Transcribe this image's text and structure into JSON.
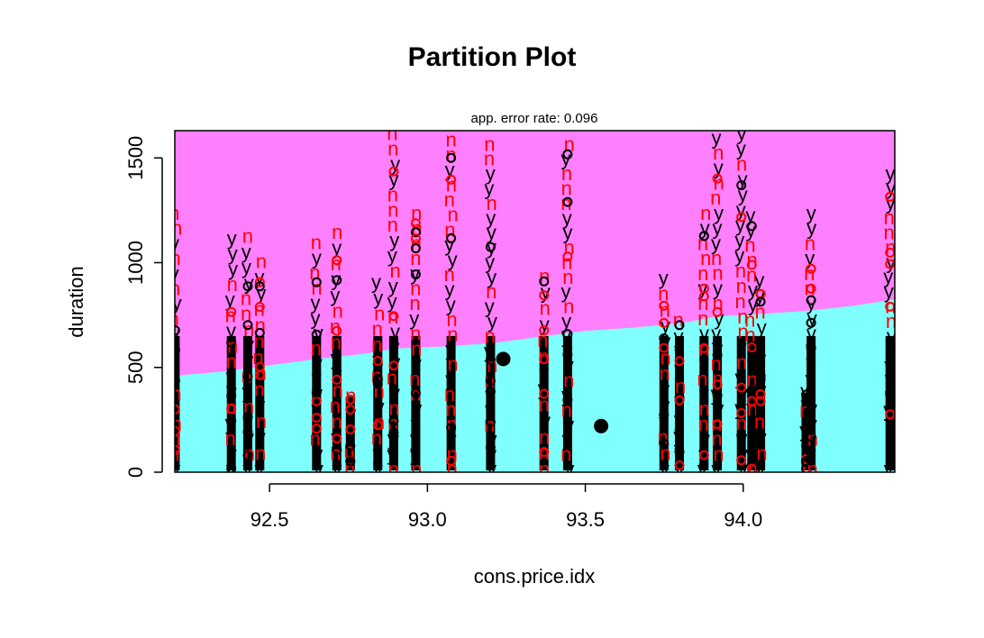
{
  "chart_data": {
    "type": "scatter",
    "title": "Partition Plot",
    "subtitle": "app. error rate: 0.096",
    "xlabel": "cons.price.idx",
    "ylabel": "duration",
    "xlim": [
      92.2,
      94.48
    ],
    "ylim": [
      0,
      1630
    ],
    "x_ticks": [
      "92.5",
      "93.0",
      "93.5",
      "94.0"
    ],
    "y_ticks": [
      "0",
      "500",
      "1000",
      "1500"
    ],
    "regions": [
      {
        "class": "y",
        "color": "#ff80ff",
        "position": "upper"
      },
      {
        "class": "n",
        "color": "#80ffff",
        "position": "lower"
      }
    ],
    "boundary": [
      [
        92.2,
        460
      ],
      [
        92.35,
        480
      ],
      [
        92.5,
        510
      ],
      [
        92.65,
        540
      ],
      [
        92.8,
        565
      ],
      [
        92.9,
        590
      ],
      [
        93.05,
        600
      ],
      [
        93.2,
        615
      ],
      [
        93.35,
        645
      ],
      [
        93.5,
        675
      ],
      [
        93.65,
        690
      ],
      [
        93.8,
        710
      ],
      [
        93.92,
        745
      ],
      [
        94.0,
        750
      ],
      [
        94.1,
        760
      ],
      [
        94.2,
        770
      ],
      [
        94.35,
        795
      ],
      [
        94.48,
        825
      ]
    ],
    "class_colors": {
      "y": "#000000",
      "n": "#ff0000"
    },
    "columns": [
      {
        "x": 92.201,
        "top": 1230
      },
      {
        "x": 92.379,
        "top": 1110
      },
      {
        "x": 92.431,
        "top": 1120
      },
      {
        "x": 92.469,
        "top": 1000
      },
      {
        "x": 92.649,
        "top": 1090
      },
      {
        "x": 92.713,
        "top": 1140
      },
      {
        "x": 92.756,
        "top": 360
      },
      {
        "x": 92.843,
        "top": 900
      },
      {
        "x": 92.893,
        "top": 1610
      },
      {
        "x": 92.963,
        "top": 1230
      },
      {
        "x": 93.075,
        "top": 1580
      },
      {
        "x": 93.2,
        "top": 1560
      },
      {
        "x": 93.369,
        "top": 930
      },
      {
        "x": 93.444,
        "top": 1560
      },
      {
        "x": 93.749,
        "top": 920
      },
      {
        "x": 93.798,
        "top": 720
      },
      {
        "x": 93.876,
        "top": 1230
      },
      {
        "x": 93.918,
        "top": 1590
      },
      {
        "x": 93.994,
        "top": 1610
      },
      {
        "x": 94.027,
        "top": 1220
      },
      {
        "x": 94.055,
        "top": 910
      },
      {
        "x": 94.199,
        "top": 380
      },
      {
        "x": 94.215,
        "top": 1230
      },
      {
        "x": 94.465,
        "top": 1420
      }
    ],
    "centroids": [
      {
        "x": 93.24,
        "y": 540
      },
      {
        "x": 93.55,
        "y": 220
      }
    ]
  }
}
